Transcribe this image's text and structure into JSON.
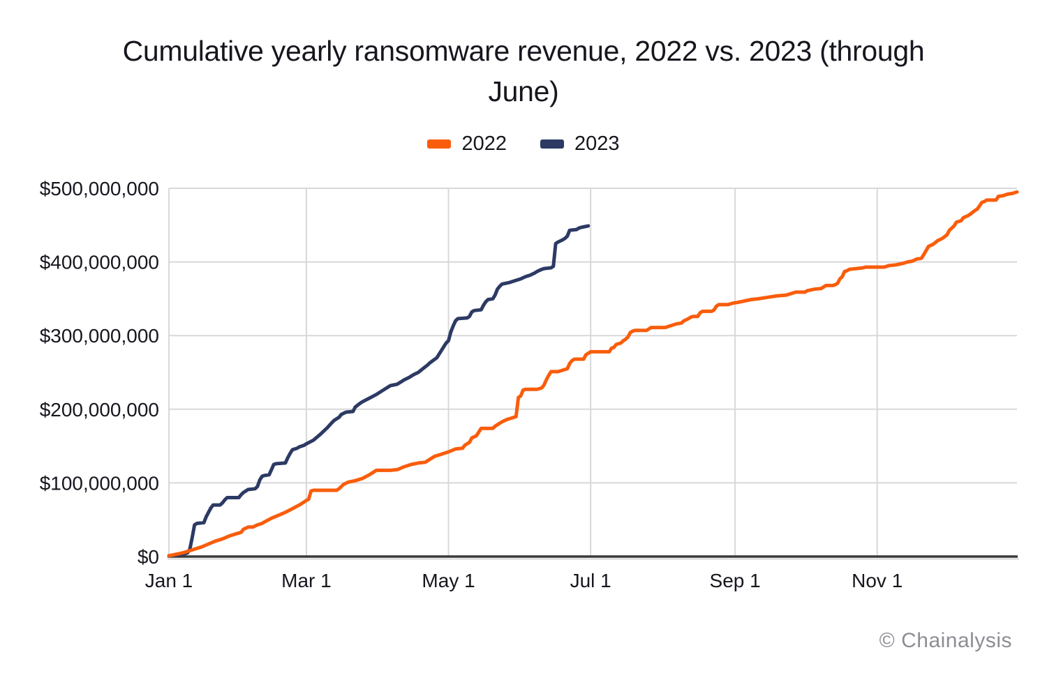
{
  "header": {
    "title": "Cumulative yearly ransomware revenue, 2022 vs. 2023 (through\nJune)"
  },
  "branding": {
    "watermark": "© Chainalysis"
  },
  "colors": {
    "accent_2022": "#F95D0B",
    "accent_2023": "#2C3A64",
    "grid": "#D8D8D8",
    "axis": "#3A3A3A",
    "text": "#16161E",
    "watermark_text": "#8D8D95"
  },
  "chart_data": {
    "type": "line",
    "title": "Cumulative yearly ransomware revenue, 2022 vs. 2023 (through June)",
    "xlabel": "",
    "ylabel": "",
    "x_unit": "day_of_year",
    "x_range": [
      0,
      364
    ],
    "x_ticks": [
      {
        "day": 0,
        "label": "Jan 1"
      },
      {
        "day": 59,
        "label": "Mar 1"
      },
      {
        "day": 120,
        "label": "May 1"
      },
      {
        "day": 181,
        "label": "Jul 1"
      },
      {
        "day": 243,
        "label": "Sep 1"
      },
      {
        "day": 304,
        "label": "Nov 1"
      }
    ],
    "y_unit": "USD millions",
    "ylim": [
      0,
      500
    ],
    "y_ticks": [
      {
        "value": 500,
        "label": "$500,000,000"
      },
      {
        "value": 400,
        "label": "$400,000,000"
      },
      {
        "value": 300,
        "label": "$300,000,000"
      },
      {
        "value": 200,
        "label": "$200,000,000"
      },
      {
        "value": 100,
        "label": "$100,000,000"
      },
      {
        "value": 0,
        "label": "$0"
      }
    ],
    "grid": true,
    "legend_position": "top",
    "series": [
      {
        "name": "2022",
        "color": "#F95D0B",
        "points": [
          [
            0,
            1
          ],
          [
            3,
            3
          ],
          [
            6,
            5
          ],
          [
            8,
            7
          ],
          [
            11,
            10
          ],
          [
            14,
            13
          ],
          [
            17,
            17
          ],
          [
            20,
            21
          ],
          [
            23,
            24
          ],
          [
            26,
            28
          ],
          [
            29,
            31
          ],
          [
            31,
            33
          ],
          [
            32,
            37
          ],
          [
            34,
            40
          ],
          [
            36,
            40
          ],
          [
            38,
            43
          ],
          [
            40,
            45
          ],
          [
            41,
            47
          ],
          [
            44,
            52
          ],
          [
            47,
            56
          ],
          [
            50,
            60
          ],
          [
            53,
            65
          ],
          [
            56,
            70
          ],
          [
            59,
            76
          ],
          [
            60,
            78
          ],
          [
            61,
            89
          ],
          [
            62,
            90
          ],
          [
            72,
            90
          ],
          [
            73,
            92
          ],
          [
            75,
            98
          ],
          [
            77,
            101
          ],
          [
            80,
            103
          ],
          [
            83,
            106
          ],
          [
            86,
            111
          ],
          [
            88,
            115
          ],
          [
            89,
            117
          ],
          [
            95,
            117
          ],
          [
            98,
            118
          ],
          [
            101,
            122
          ],
          [
            104,
            125
          ],
          [
            107,
            127
          ],
          [
            110,
            128
          ],
          [
            112,
            132
          ],
          [
            114,
            136
          ],
          [
            117,
            139
          ],
          [
            120,
            142
          ],
          [
            123,
            146
          ],
          [
            126,
            147
          ],
          [
            127,
            151
          ],
          [
            129,
            155
          ],
          [
            130,
            161
          ],
          [
            132,
            164
          ],
          [
            133,
            169
          ],
          [
            134,
            174
          ],
          [
            139,
            174
          ],
          [
            140,
            177
          ],
          [
            142,
            181
          ],
          [
            143,
            183
          ],
          [
            145,
            186
          ],
          [
            147,
            188
          ],
          [
            149,
            190
          ],
          [
            150,
            216
          ],
          [
            151,
            218
          ],
          [
            152,
            226
          ],
          [
            153,
            227
          ],
          [
            158,
            227
          ],
          [
            160,
            229
          ],
          [
            161,
            233
          ],
          [
            162,
            240
          ],
          [
            163,
            246
          ],
          [
            164,
            251
          ],
          [
            167,
            251
          ],
          [
            168,
            252
          ],
          [
            170,
            254
          ],
          [
            171,
            255
          ],
          [
            172,
            262
          ],
          [
            173,
            266
          ],
          [
            174,
            268
          ],
          [
            178,
            268
          ],
          [
            179,
            274
          ],
          [
            181,
            278
          ],
          [
            189,
            278
          ],
          [
            190,
            283
          ],
          [
            191,
            284
          ],
          [
            192,
            288
          ],
          [
            194,
            290
          ],
          [
            195,
            293
          ],
          [
            196,
            295
          ],
          [
            197,
            298
          ],
          [
            198,
            304
          ],
          [
            199,
            306
          ],
          [
            200,
            307
          ],
          [
            205,
            307
          ],
          [
            206,
            309
          ],
          [
            207,
            311
          ],
          [
            213,
            311
          ],
          [
            214,
            312
          ],
          [
            216,
            314
          ],
          [
            218,
            316
          ],
          [
            220,
            317
          ],
          [
            221,
            320
          ],
          [
            223,
            323
          ],
          [
            224,
            325
          ],
          [
            225,
            326
          ],
          [
            227,
            326
          ],
          [
            228,
            331
          ],
          [
            229,
            333
          ],
          [
            233,
            333
          ],
          [
            234,
            335
          ],
          [
            235,
            340
          ],
          [
            236,
            342
          ],
          [
            240,
            342
          ],
          [
            242,
            344
          ],
          [
            244,
            345
          ],
          [
            247,
            347
          ],
          [
            250,
            349
          ],
          [
            253,
            350
          ],
          [
            257,
            352
          ],
          [
            261,
            354
          ],
          [
            265,
            355
          ],
          [
            268,
            358
          ],
          [
            269,
            359
          ],
          [
            273,
            359
          ],
          [
            274,
            361
          ],
          [
            277,
            363
          ],
          [
            280,
            364
          ],
          [
            281,
            366
          ],
          [
            282,
            368
          ],
          [
            285,
            368
          ],
          [
            286,
            369
          ],
          [
            287,
            371
          ],
          [
            288,
            377
          ],
          [
            289,
            380
          ],
          [
            290,
            387
          ],
          [
            291,
            388
          ],
          [
            292,
            390
          ],
          [
            295,
            391
          ],
          [
            298,
            392
          ],
          [
            299,
            393
          ],
          [
            307,
            393
          ],
          [
            309,
            395
          ],
          [
            312,
            396
          ],
          [
            315,
            398
          ],
          [
            317,
            400
          ],
          [
            319,
            401
          ],
          [
            321,
            404
          ],
          [
            323,
            405
          ],
          [
            324,
            410
          ],
          [
            326,
            421
          ],
          [
            328,
            424
          ],
          [
            330,
            429
          ],
          [
            332,
            432
          ],
          [
            334,
            437
          ],
          [
            335,
            443
          ],
          [
            337,
            449
          ],
          [
            338,
            454
          ],
          [
            340,
            456
          ],
          [
            341,
            460
          ],
          [
            343,
            463
          ],
          [
            344,
            465
          ],
          [
            346,
            470
          ],
          [
            347,
            472
          ],
          [
            349,
            481
          ],
          [
            350,
            482
          ],
          [
            351,
            484
          ],
          [
            355,
            484
          ],
          [
            356,
            489
          ],
          [
            358,
            490
          ],
          [
            360,
            492
          ],
          [
            362,
            493
          ],
          [
            364,
            495
          ]
        ]
      },
      {
        "name": "2023",
        "color": "#2C3A64",
        "points": [
          [
            0,
            1
          ],
          [
            3,
            2
          ],
          [
            6,
            3
          ],
          [
            8,
            5
          ],
          [
            9,
            10
          ],
          [
            10,
            26
          ],
          [
            11,
            43
          ],
          [
            12,
            45
          ],
          [
            15,
            46
          ],
          [
            16,
            54
          ],
          [
            17,
            60
          ],
          [
            18,
            66
          ],
          [
            19,
            70
          ],
          [
            22,
            70
          ],
          [
            23,
            73
          ],
          [
            24,
            77
          ],
          [
            25,
            80
          ],
          [
            30,
            80
          ],
          [
            31,
            84
          ],
          [
            32,
            87
          ],
          [
            33,
            89
          ],
          [
            34,
            91
          ],
          [
            37,
            92
          ],
          [
            38,
            95
          ],
          [
            39,
            104
          ],
          [
            40,
            109
          ],
          [
            41,
            110
          ],
          [
            43,
            111
          ],
          [
            44,
            118
          ],
          [
            45,
            125
          ],
          [
            46,
            126
          ],
          [
            50,
            127
          ],
          [
            51,
            134
          ],
          [
            52,
            140
          ],
          [
            53,
            145
          ],
          [
            55,
            147
          ],
          [
            56,
            149
          ],
          [
            58,
            151
          ],
          [
            59,
            153
          ],
          [
            62,
            158
          ],
          [
            65,
            166
          ],
          [
            67,
            172
          ],
          [
            68,
            175
          ],
          [
            70,
            182
          ],
          [
            71,
            185
          ],
          [
            73,
            189
          ],
          [
            74,
            193
          ],
          [
            76,
            196
          ],
          [
            79,
            197
          ],
          [
            80,
            203
          ],
          [
            82,
            208
          ],
          [
            83,
            210
          ],
          [
            86,
            215
          ],
          [
            89,
            220
          ],
          [
            92,
            226
          ],
          [
            94,
            230
          ],
          [
            95,
            232
          ],
          [
            98,
            234
          ],
          [
            100,
            238
          ],
          [
            101,
            240
          ],
          [
            103,
            243
          ],
          [
            105,
            247
          ],
          [
            107,
            250
          ],
          [
            109,
            255
          ],
          [
            111,
            260
          ],
          [
            112,
            263
          ],
          [
            115,
            270
          ],
          [
            117,
            280
          ],
          [
            119,
            290
          ],
          [
            120,
            293
          ],
          [
            121,
            305
          ],
          [
            122,
            313
          ],
          [
            123,
            320
          ],
          [
            124,
            323
          ],
          [
            128,
            324
          ],
          [
            129,
            326
          ],
          [
            130,
            332
          ],
          [
            131,
            334
          ],
          [
            134,
            335
          ],
          [
            135,
            341
          ],
          [
            136,
            346
          ],
          [
            137,
            349
          ],
          [
            139,
            350
          ],
          [
            140,
            355
          ],
          [
            141,
            363
          ],
          [
            142,
            367
          ],
          [
            143,
            370
          ],
          [
            146,
            372
          ],
          [
            147,
            373
          ],
          [
            149,
            375
          ],
          [
            151,
            377
          ],
          [
            153,
            380
          ],
          [
            155,
            382
          ],
          [
            157,
            385
          ],
          [
            158,
            387
          ],
          [
            160,
            390
          ],
          [
            161,
            391
          ],
          [
            164,
            392
          ],
          [
            165,
            394
          ],
          [
            166,
            425
          ],
          [
            167,
            427
          ],
          [
            169,
            430
          ],
          [
            170,
            432
          ],
          [
            171,
            435
          ],
          [
            172,
            443
          ],
          [
            175,
            444
          ],
          [
            176,
            446
          ],
          [
            177,
            447
          ],
          [
            180,
            449
          ]
        ]
      }
    ]
  }
}
